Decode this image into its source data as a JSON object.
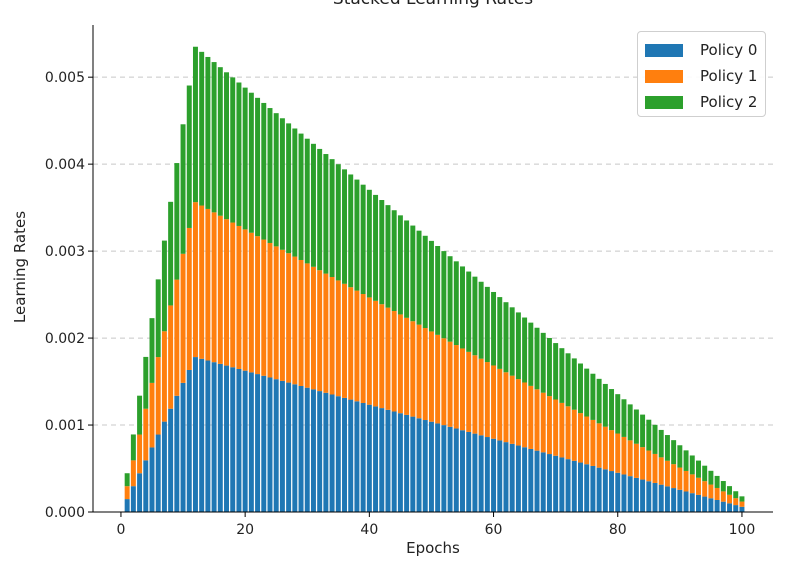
{
  "chart_data": {
    "type": "bar",
    "stacked": true,
    "title": "Stacked Learning Rates",
    "xlabel": "Epochs",
    "ylabel": "Learning Rates",
    "xlim": [
      -4.5,
      105
    ],
    "ylim": [
      0,
      0.0056
    ],
    "xticks": [
      0,
      20,
      40,
      60,
      80,
      100
    ],
    "yticks": [
      0.0,
      0.001,
      0.002,
      0.003,
      0.004,
      0.005
    ],
    "ytick_labels": [
      "0.000",
      "0.001",
      "0.002",
      "0.003",
      "0.004",
      "0.005"
    ],
    "grid": "y dashed",
    "legend_position": "top-right",
    "schedule": {
      "epochs": [
        1,
        100
      ],
      "warmup_end_epoch": 12,
      "peak_total": 0.00535,
      "final_total": 0.00018,
      "policy_fractions": [
        0.333,
        0.333,
        0.334
      ]
    },
    "series": [
      {
        "name": "Policy 0",
        "color": "#1f77b4"
      },
      {
        "name": "Policy 1",
        "color": "#ff7f0e"
      },
      {
        "name": "Policy 2",
        "color": "#2ca02c"
      }
    ]
  }
}
